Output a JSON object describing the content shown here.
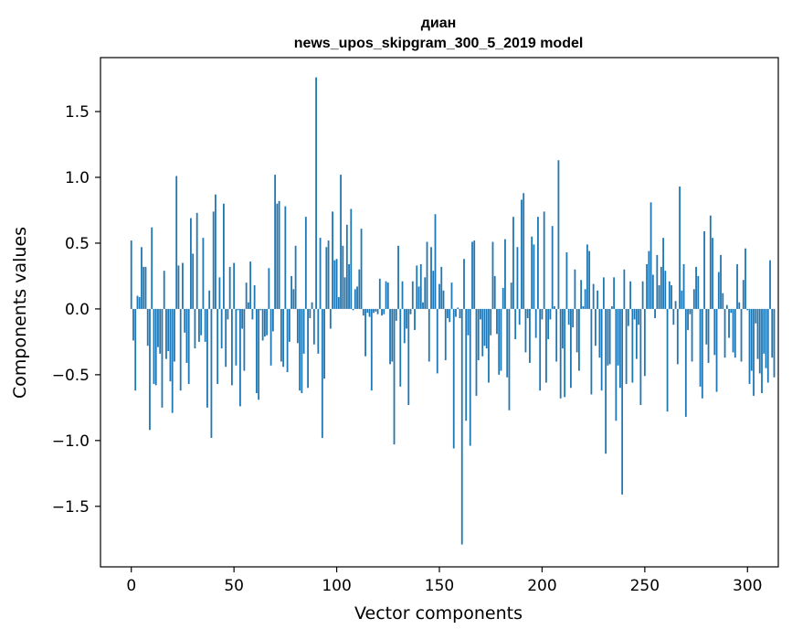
{
  "chart_data": {
    "type": "bar",
    "title_line1": "диан",
    "title_line2": "news_upos_skipgram_300_5_2019 model",
    "xlabel": "Vector components",
    "ylabel": "Components values",
    "xlim": [
      -15,
      315
    ],
    "ylim": [
      -1.96,
      1.91
    ],
    "x_ticks": [
      0,
      50,
      100,
      150,
      200,
      250,
      300
    ],
    "y_ticks": [
      -1.5,
      -1.0,
      -0.5,
      0.0,
      0.5,
      1.0,
      1.5
    ],
    "y_tick_labels": [
      "−1.5",
      "−1.0",
      "−0.5",
      "0.0",
      "0.5",
      "1.0",
      "1.5"
    ],
    "bar_color": "#1f77b4",
    "grid": false,
    "legend": "none",
    "values": [
      0.52,
      -0.24,
      -0.62,
      0.1,
      0.09,
      0.47,
      0.32,
      0.32,
      -0.28,
      -0.92,
      0.62,
      -0.57,
      -0.58,
      -0.29,
      -0.34,
      -0.75,
      0.29,
      -0.38,
      -0.32,
      -0.55,
      -0.79,
      -0.4,
      1.01,
      0.33,
      -0.62,
      0.35,
      -0.18,
      -0.41,
      -0.57,
      0.69,
      0.42,
      -0.3,
      0.73,
      -0.25,
      -0.2,
      0.54,
      -0.25,
      -0.75,
      0.14,
      -0.98,
      0.74,
      0.87,
      -0.57,
      0.24,
      -0.3,
      0.8,
      -0.44,
      -0.08,
      0.32,
      -0.58,
      0.35,
      -0.43,
      -0.01,
      -0.74,
      -0.15,
      -0.47,
      0.2,
      0.05,
      0.36,
      -0.08,
      0.18,
      -0.64,
      -0.69,
      -0.01,
      -0.24,
      -0.21,
      -0.2,
      0.31,
      -0.43,
      -0.17,
      1.02,
      0.8,
      0.82,
      -0.4,
      -0.44,
      0.78,
      -0.48,
      -0.25,
      0.25,
      0.15,
      0.48,
      -0.26,
      -0.62,
      -0.64,
      -0.34,
      0.7,
      -0.6,
      -0.07,
      0.05,
      -0.27,
      1.76,
      -0.34,
      0.54,
      -0.98,
      -0.53,
      0.47,
      0.52,
      -0.15,
      0.74,
      0.37,
      0.38,
      0.09,
      1.02,
      0.48,
      0.24,
      0.64,
      0.34,
      0.76,
      -0.01,
      0.15,
      0.17,
      0.3,
      0.61,
      -0.05,
      -0.36,
      -0.03,
      -0.06,
      -0.62,
      -0.03,
      -0.02,
      -0.04,
      0.23,
      -0.05,
      -0.04,
      0.21,
      0.2,
      -0.42,
      -0.4,
      -1.03,
      -0.09,
      0.48,
      -0.59,
      0.21,
      -0.26,
      -0.15,
      -0.73,
      -0.04,
      0.21,
      -0.16,
      0.33,
      0.17,
      0.34,
      0.05,
      0.24,
      0.51,
      -0.4,
      0.47,
      0.29,
      0.72,
      -0.49,
      0.19,
      0.32,
      0.14,
      -0.39,
      -0.07,
      -0.1,
      0.2,
      -1.06,
      -0.06,
      0.01,
      -0.07,
      -1.79,
      0.38,
      -0.85,
      -0.2,
      -1.04,
      0.51,
      0.52,
      -0.66,
      -0.39,
      -0.08,
      -0.36,
      -0.28,
      -0.3,
      -0.56,
      -0.2,
      0.51,
      0.25,
      -0.19,
      -0.5,
      -0.47,
      0.16,
      0.53,
      -0.52,
      -0.77,
      0.2,
      0.7,
      -0.23,
      0.47,
      -0.12,
      0.83,
      0.88,
      -0.33,
      -0.07,
      -0.41,
      0.55,
      0.49,
      -0.22,
      0.7,
      -0.62,
      -0.08,
      0.74,
      -0.56,
      -0.23,
      -0.08,
      0.63,
      0.02,
      -0.4,
      1.13,
      -0.68,
      -0.3,
      -0.67,
      0.43,
      -0.12,
      -0.6,
      -0.14,
      0.3,
      -0.33,
      -0.47,
      0.22,
      0.02,
      0.15,
      0.49,
      0.44,
      -0.65,
      0.19,
      -0.28,
      0.14,
      -0.37,
      -0.62,
      0.24,
      -1.1,
      -0.43,
      -0.42,
      0.02,
      0.24,
      -0.85,
      -0.43,
      -0.6,
      -1.41,
      0.3,
      -0.57,
      -0.13,
      0.21,
      -0.56,
      -0.08,
      -0.38,
      -0.12,
      -0.73,
      0.21,
      -0.51,
      0.34,
      0.44,
      0.81,
      0.26,
      -0.07,
      0.41,
      0.18,
      0.32,
      0.54,
      0.29,
      -0.78,
      0.21,
      0.18,
      -0.12,
      0.06,
      -0.42,
      0.93,
      0.14,
      0.34,
      -0.82,
      -0.16,
      -0.04,
      -0.4,
      0.15,
      0.32,
      0.25,
      -0.59,
      -0.68,
      0.59,
      -0.27,
      -0.41,
      0.71,
      0.54,
      -0.35,
      -0.63,
      0.28,
      0.41,
      0.12,
      -0.37,
      0.03,
      -0.22,
      -0.03,
      -0.33,
      -0.37,
      0.34,
      0.05,
      -0.4,
      0.22,
      0.46,
      -0.01,
      -0.57,
      -0.47,
      -0.66,
      -0.11,
      -0.38,
      -0.49,
      -0.64,
      -0.34,
      -0.45,
      -0.56,
      0.37,
      -0.37,
      -0.52
    ]
  }
}
